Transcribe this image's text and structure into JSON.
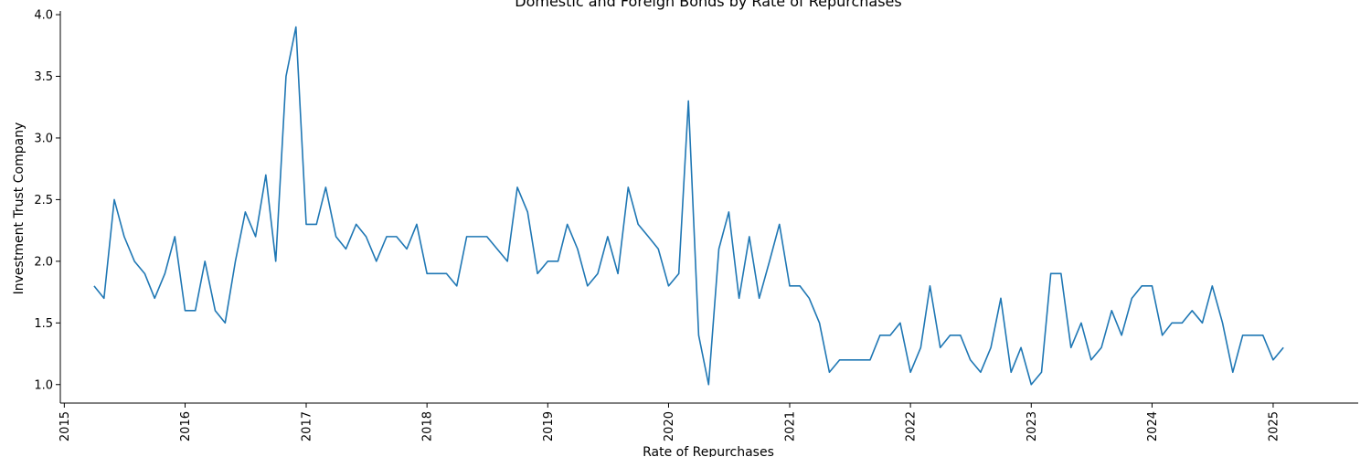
{
  "chart_data": {
    "type": "line",
    "title": "Domestic and Foreign Bonds by Rate of Repurchases",
    "xlabel": "Rate of Repurchases",
    "ylabel": "Investment Trust Company",
    "xlim": [
      "2014-12-20",
      "2025-09-15"
    ],
    "ylim": [
      0.85,
      4.03
    ],
    "x_ticks": [
      "2015",
      "2016",
      "2017",
      "2018",
      "2019",
      "2020",
      "2021",
      "2022",
      "2023",
      "2024",
      "2025"
    ],
    "y_ticks": [
      "1.0",
      "1.5",
      "2.0",
      "2.5",
      "3.0",
      "3.5",
      "4.0"
    ],
    "grid": false,
    "series": [
      {
        "color": "#1f77b4",
        "start": "2015-04",
        "values": [
          1.8,
          1.7,
          2.5,
          2.2,
          2.0,
          1.9,
          1.7,
          1.9,
          2.2,
          1.6,
          1.6,
          2.0,
          1.6,
          1.5,
          2.0,
          2.4,
          2.2,
          2.7,
          2.0,
          3.5,
          3.9,
          2.3,
          2.3,
          2.6,
          2.2,
          2.1,
          2.3,
          2.2,
          2.0,
          2.2,
          2.2,
          2.1,
          2.3,
          1.9,
          1.9,
          1.9,
          1.8,
          2.2,
          2.2,
          2.2,
          2.1,
          2.0,
          2.6,
          2.4,
          1.9,
          2.0,
          2.0,
          2.3,
          2.1,
          1.8,
          1.9,
          2.2,
          1.9,
          2.6,
          2.3,
          2.2,
          2.1,
          1.8,
          1.9,
          3.3,
          1.4,
          1.0,
          2.1,
          2.4,
          1.7,
          2.2,
          1.7,
          2.0,
          2.3,
          1.8,
          1.8,
          1.7,
          1.5,
          1.1,
          1.2,
          1.2,
          1.2,
          1.2,
          1.4,
          1.4,
          1.5,
          1.1,
          1.3,
          1.8,
          1.3,
          1.4,
          1.4,
          1.2,
          1.1,
          1.3,
          1.7,
          1.1,
          1.3,
          1.0,
          1.1,
          1.9,
          1.9,
          1.3,
          1.5,
          1.2,
          1.3,
          1.6,
          1.4,
          1.7,
          1.8,
          1.8,
          1.4,
          1.5,
          1.5,
          1.6,
          1.5,
          1.8,
          1.5,
          1.1,
          1.4,
          1.4,
          1.4,
          1.2,
          1.3
        ]
      }
    ]
  }
}
